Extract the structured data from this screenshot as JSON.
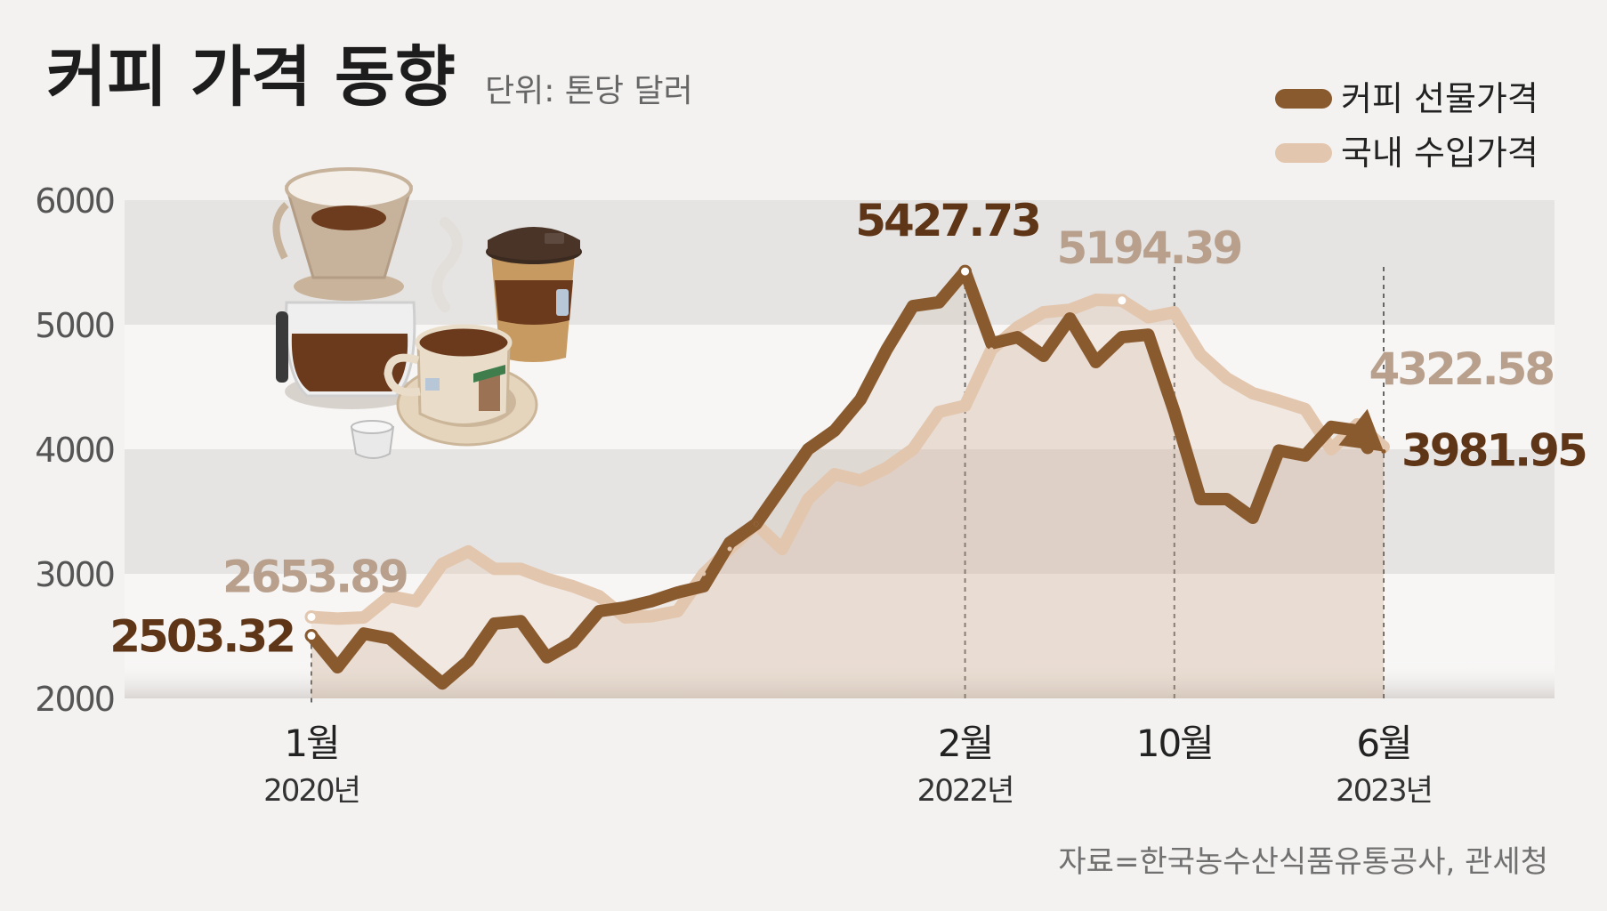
{
  "title": "커피 가격 동향",
  "unit": "단위: 톤당 달러",
  "source": "자료=한국농수산식품유통공사, 관세청",
  "colors": {
    "futures": "#8a5a2f",
    "import": "#e3c6ae",
    "value_dark": "#5e3516",
    "value_light": "#b8a08d"
  },
  "chart_data": {
    "type": "line",
    "ylim": [
      2000,
      6000
    ],
    "yticks": [
      "6000",
      "5000",
      "4000",
      "3000",
      "2000"
    ],
    "ytick_values": [
      6000,
      5000,
      4000,
      3000,
      2000
    ],
    "x_range": [
      2020.0,
      2023.417
    ],
    "x_ticks": [
      {
        "x": 2020.0,
        "month": "1월",
        "year": "2020년"
      },
      {
        "x": 2022.083,
        "month": "2월",
        "year": "2022년"
      },
      {
        "x": 2022.75,
        "month": "10월",
        "year": ""
      },
      {
        "x": 2023.417,
        "month": "6월",
        "year": "2023년"
      }
    ],
    "series": [
      {
        "name": "커피 선물가격",
        "x": [
          2020.0,
          2020.083,
          2020.167,
          2020.25,
          2020.333,
          2020.417,
          2020.5,
          2020.583,
          2020.667,
          2020.75,
          2020.833,
          2020.917,
          2021.0,
          2021.083,
          2021.167,
          2021.25,
          2021.333,
          2021.417,
          2021.5,
          2021.583,
          2021.667,
          2021.75,
          2021.833,
          2021.917,
          2022.0,
          2022.083,
          2022.167,
          2022.25,
          2022.333,
          2022.417,
          2022.5,
          2022.583,
          2022.667,
          2022.75,
          2022.833,
          2022.917,
          2023.0,
          2023.083,
          2023.167,
          2023.25,
          2023.333,
          2023.417
        ],
        "values": [
          2503.32,
          2250,
          2520,
          2480,
          2300,
          2120,
          2300,
          2600,
          2620,
          2330,
          2450,
          2700,
          2730,
          2780,
          2850,
          2900,
          3250,
          3400,
          3700,
          4000,
          4150,
          4400,
          4800,
          5150,
          5180,
          5427.73,
          4850,
          4900,
          4750,
          5050,
          4700,
          4900,
          4920,
          4300,
          3600,
          3600,
          3450,
          3990,
          3950,
          4180,
          4150,
          3981.95
        ],
        "labels": [
          {
            "index": 0,
            "text": "2503.32"
          },
          {
            "index": 25,
            "text": "5427.73"
          },
          {
            "index": 41,
            "text": "3981.95"
          }
        ]
      },
      {
        "name": "국내 수입가격",
        "x": [
          2020.0,
          2020.083,
          2020.167,
          2020.25,
          2020.333,
          2020.417,
          2020.5,
          2020.583,
          2020.667,
          2020.75,
          2020.833,
          2020.917,
          2021.0,
          2021.083,
          2021.167,
          2021.25,
          2021.333,
          2021.417,
          2021.5,
          2021.583,
          2021.667,
          2021.75,
          2021.833,
          2021.917,
          2022.0,
          2022.083,
          2022.167,
          2022.25,
          2022.333,
          2022.417,
          2022.5,
          2022.583,
          2022.667,
          2022.75,
          2022.833,
          2022.917,
          2023.0,
          2023.083,
          2023.167,
          2023.25,
          2023.333,
          2023.417
        ],
        "values": [
          2653.89,
          2640,
          2650,
          2820,
          2780,
          3080,
          3180,
          3040,
          3040,
          2960,
          2900,
          2820,
          2650,
          2660,
          2700,
          3000,
          3200,
          3400,
          3200,
          3600,
          3800,
          3750,
          3850,
          4000,
          4300,
          4350,
          4800,
          4980,
          5100,
          5120,
          5200,
          5194.39,
          5060,
          5100,
          4760,
          4570,
          4450,
          4390,
          4322.58,
          4000,
          4200,
          4020
        ],
        "labels": [
          {
            "index": 0,
            "text": "2653.89"
          },
          {
            "index": 31,
            "text": "5194.39"
          },
          {
            "index": 38,
            "text": "4322.58"
          }
        ]
      }
    ]
  }
}
